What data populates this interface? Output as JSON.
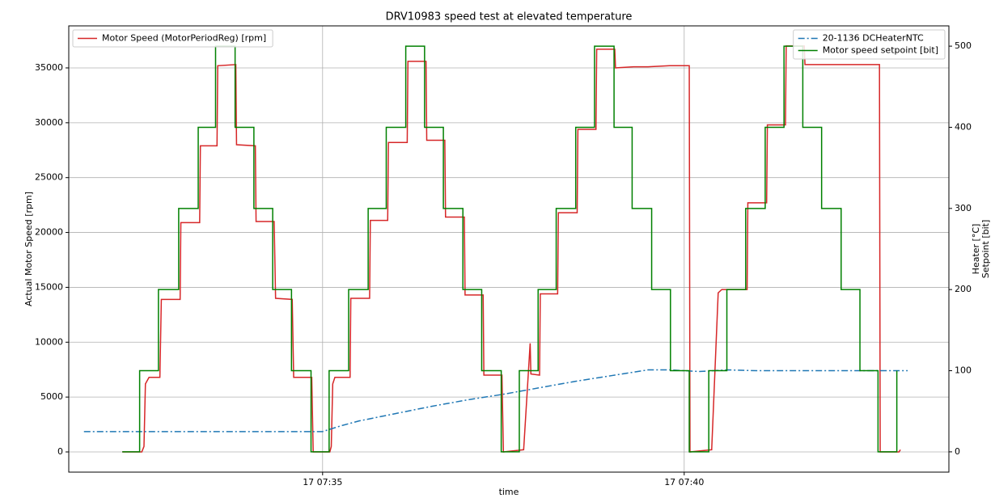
{
  "chart_data": {
    "type": "line",
    "title": "DRV10983 speed test at elevated temperature",
    "xlabel": "time",
    "ylabel": "Actual Motor Speed [rpm]",
    "y2label": [
      "Heater [°C]",
      "Setpoint [bit]"
    ],
    "xlim": [
      31.49,
      43.66
    ],
    "xticks": [
      {
        "value": 35,
        "label": "17 07:35"
      },
      {
        "value": 40,
        "label": "17 07:40"
      }
    ],
    "ylim": [
      -1842,
      38830
    ],
    "yticks": [
      0,
      5000,
      10000,
      15000,
      20000,
      25000,
      30000,
      35000
    ],
    "y2lim": [
      -25,
      525
    ],
    "y2ticks": [
      0,
      100,
      200,
      300,
      400,
      500
    ],
    "grid": true,
    "legend": {
      "y": "upper left",
      "y2": "upper right"
    },
    "series": [
      {
        "name": "Motor Speed (MotorPeriodReg) [rpm]",
        "color": "#d62728",
        "axis": "y",
        "linestyle": "solid",
        "x": [
          32.23,
          32.5,
          32.53,
          32.55,
          32.6,
          32.75,
          32.77,
          33.03,
          33.04,
          33.3,
          33.31,
          33.54,
          33.55,
          33.8,
          33.81,
          34.07,
          34.08,
          34.33,
          34.35,
          34.58,
          34.6,
          34.85,
          34.87,
          35.1,
          35.12,
          35.14,
          35.17,
          35.38,
          35.39,
          35.65,
          35.66,
          35.9,
          35.91,
          36.17,
          36.18,
          36.43,
          36.44,
          36.69,
          36.7,
          36.96,
          36.97,
          37.22,
          37.23,
          37.48,
          37.5,
          37.78,
          37.87,
          37.88,
          38.0,
          38.01,
          38.25,
          38.26,
          38.52,
          38.53,
          38.78,
          38.79,
          39.04,
          39.05,
          39.3,
          39.5,
          39.8,
          40.07,
          40.08,
          40.38,
          40.47,
          40.52,
          40.87,
          40.88,
          41.14,
          41.15,
          41.4,
          41.41,
          41.66,
          41.67,
          42.7,
          42.71,
          42.97,
          42.99
        ],
        "values": [
          0,
          0,
          500,
          6200,
          6800,
          6800,
          13900,
          13900,
          20900,
          20900,
          27900,
          27900,
          35200,
          35300,
          28000,
          27900,
          21000,
          21000,
          14000,
          13900,
          6800,
          6800,
          0,
          0,
          500,
          6200,
          6800,
          6800,
          14000,
          14000,
          21100,
          21100,
          28200,
          28200,
          35600,
          35600,
          28400,
          28400,
          21400,
          21400,
          14300,
          14300,
          7000,
          7000,
          0,
          200,
          9900,
          7100,
          7000,
          14400,
          14400,
          21800,
          21800,
          29400,
          29400,
          36700,
          36700,
          35000,
          35100,
          35100,
          35200,
          35200,
          0,
          200,
          14500,
          14800,
          14800,
          22700,
          22700,
          29800,
          29800,
          37000,
          37000,
          35300,
          35300,
          0,
          0,
          200
        ]
      },
      {
        "name": "20-1136 DCHeaterNTC",
        "color": "#1f77b4",
        "axis": "y2",
        "linestyle": "dashdot",
        "x": [
          31.7,
          35.0,
          35.25,
          35.5,
          36.0,
          36.5,
          37.0,
          37.5,
          38.0,
          38.5,
          39.0,
          39.5,
          39.8,
          40.2,
          40.6,
          41.0,
          41.5,
          42.0,
          42.5,
          43.09
        ],
        "values": [
          25,
          25,
          32,
          38,
          47,
          56,
          64,
          71,
          79,
          87,
          94,
          101,
          101,
          99,
          101,
          100,
          100,
          100,
          100,
          100
        ]
      },
      {
        "name": "Motor speed setpoint [bit]",
        "color": "#008000",
        "axis": "y2",
        "linestyle": "solid",
        "x": [
          32.23,
          32.47,
          32.47,
          32.73,
          32.73,
          33.01,
          33.01,
          33.28,
          33.28,
          33.52,
          33.52,
          33.79,
          33.79,
          34.05,
          34.05,
          34.31,
          34.31,
          34.57,
          34.57,
          34.84,
          34.84,
          35.09,
          35.09,
          35.36,
          35.36,
          35.63,
          35.63,
          35.88,
          35.88,
          36.15,
          36.15,
          36.41,
          36.41,
          36.67,
          36.67,
          36.94,
          36.94,
          37.2,
          37.2,
          37.47,
          37.47,
          37.72,
          37.72,
          37.98,
          37.98,
          38.23,
          38.23,
          38.5,
          38.5,
          38.76,
          38.76,
          39.03,
          39.03,
          39.28,
          39.28,
          39.55,
          39.55,
          39.81,
          39.81,
          40.07,
          40.07,
          40.34,
          40.34,
          40.59,
          40.59,
          40.85,
          40.85,
          41.12,
          41.12,
          41.38,
          41.38,
          41.64,
          41.64,
          41.9,
          41.9,
          42.17,
          42.17,
          42.43,
          42.43,
          42.68,
          42.68,
          42.94,
          42.94
        ],
        "values": [
          0,
          0,
          100,
          100,
          200,
          200,
          300,
          300,
          400,
          400,
          500,
          500,
          400,
          400,
          300,
          300,
          200,
          200,
          100,
          100,
          0,
          0,
          100,
          100,
          200,
          200,
          300,
          300,
          400,
          400,
          500,
          500,
          400,
          400,
          300,
          300,
          200,
          200,
          100,
          100,
          0,
          0,
          100,
          100,
          200,
          200,
          300,
          300,
          400,
          400,
          500,
          500,
          400,
          400,
          300,
          300,
          200,
          200,
          100,
          100,
          0,
          0,
          100,
          100,
          200,
          200,
          300,
          300,
          400,
          400,
          500,
          500,
          400,
          400,
          300,
          300,
          200,
          200,
          100,
          100,
          0,
          0,
          100
        ]
      }
    ]
  }
}
